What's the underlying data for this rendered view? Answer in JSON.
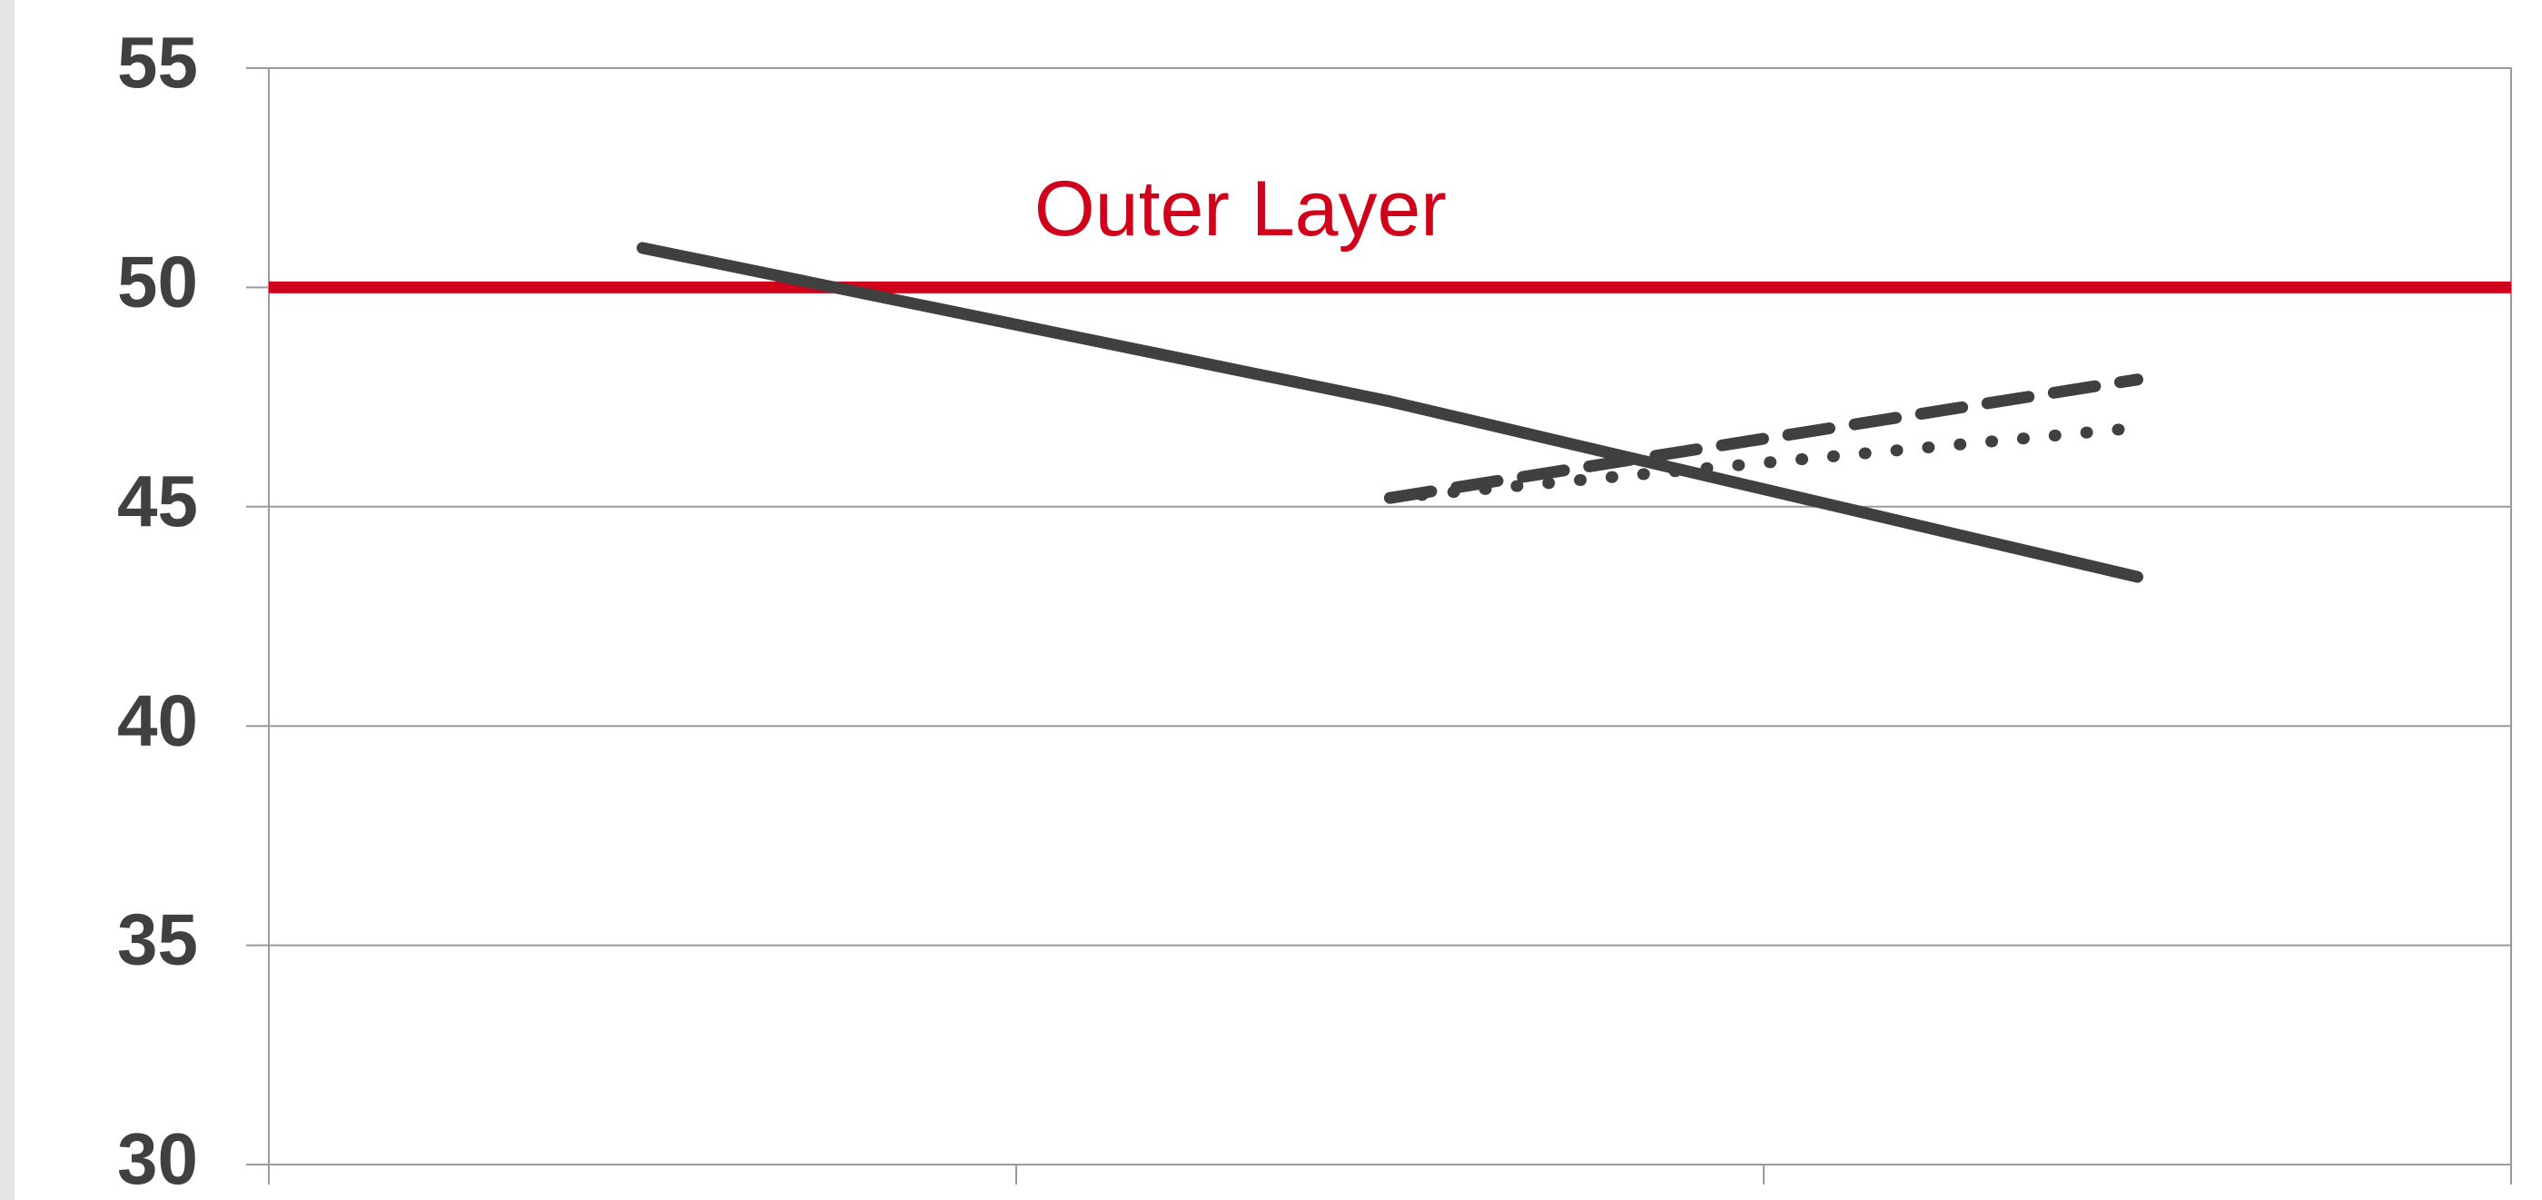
{
  "chart_data": {
    "type": "line",
    "categories": [
      null,
      null,
      null
    ],
    "series": [
      {
        "color": "#404040",
        "style": "solid",
        "values": [
          50.9,
          47.4,
          43.4
        ]
      },
      {
        "color": "#404040",
        "style": "dashed",
        "values": [
          null,
          45.2,
          47.9
        ]
      },
      {
        "color": "#404040",
        "style": "dotted",
        "values": [
          null,
          45.2,
          46.8
        ]
      }
    ],
    "reference_lines": [
      {
        "value": 50,
        "label": "Outer Layer",
        "color": "#d0021b"
      }
    ],
    "ylim": [
      30,
      55
    ],
    "yticks": [
      30,
      35,
      40,
      45,
      50,
      55
    ],
    "grid": true
  }
}
